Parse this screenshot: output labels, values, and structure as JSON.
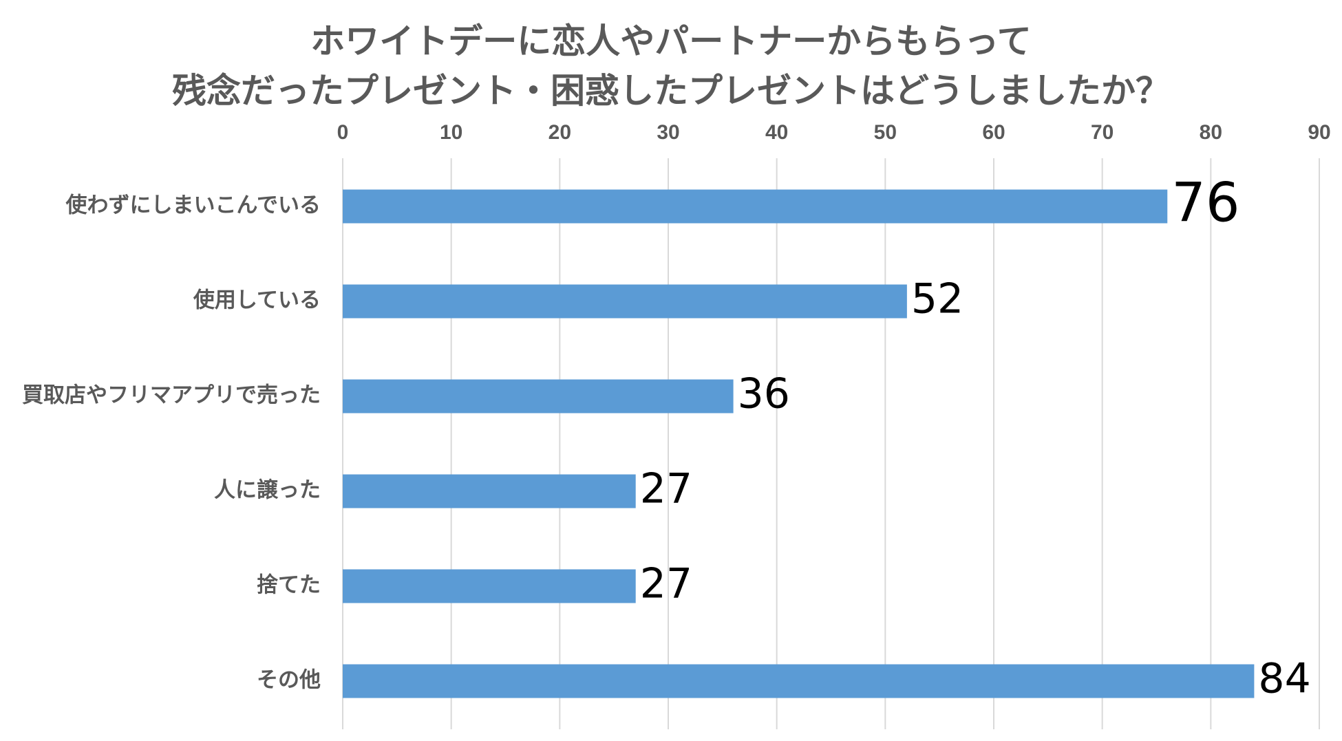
{
  "chart_data": {
    "type": "bar",
    "orientation": "horizontal",
    "title": "ホワイトデーに恋人やパートナーからもらって残念だったプレゼント・困惑したプレゼントはどうしましたか？",
    "title_lines": [
      "ホワイトデーに恋人やパートナーからもらって",
      "残念だったプレゼント・困惑したプレゼントはどうしましたか？"
    ],
    "categories": [
      "使わずにしまいこんでいる",
      "使用している",
      "買取店やフリマアプリで売った",
      "人に譲った",
      "捨てた",
      "その他"
    ],
    "values": [
      76,
      52,
      36,
      27,
      27,
      84
    ],
    "value_labels": [
      "76",
      "52",
      "36",
      "27",
      "27",
      "84"
    ],
    "xlim": [
      0,
      90
    ],
    "ticks": [
      0,
      10,
      20,
      30,
      40,
      50,
      60,
      70,
      80,
      90
    ],
    "tick_labels": [
      "0",
      "10",
      "20",
      "30",
      "40",
      "50",
      "60",
      "70",
      "80",
      "90"
    ],
    "xaxis_position": "top",
    "grid": true,
    "legend": "none",
    "xlabel": "",
    "ylabel": "",
    "bar_color": "#5b9bd5",
    "grid_color": "#d9d9d9",
    "text_color": "#595959",
    "label_color": "#000000"
  }
}
